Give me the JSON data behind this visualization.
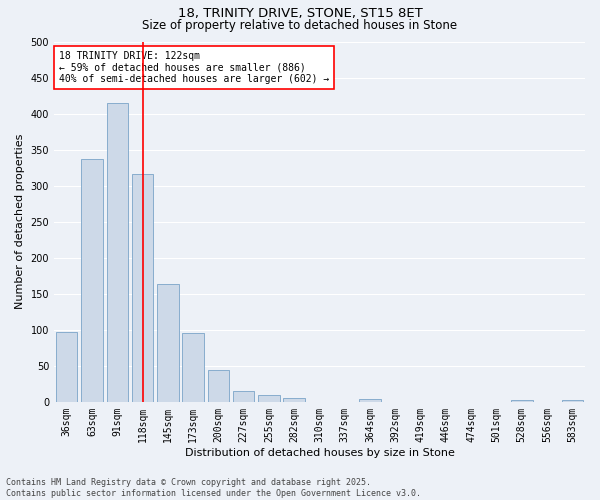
{
  "title1": "18, TRINITY DRIVE, STONE, ST15 8ET",
  "title2": "Size of property relative to detached houses in Stone",
  "xlabel": "Distribution of detached houses by size in Stone",
  "ylabel": "Number of detached properties",
  "categories": [
    "36sqm",
    "63sqm",
    "91sqm",
    "118sqm",
    "145sqm",
    "173sqm",
    "200sqm",
    "227sqm",
    "255sqm",
    "282sqm",
    "310sqm",
    "337sqm",
    "364sqm",
    "392sqm",
    "419sqm",
    "446sqm",
    "474sqm",
    "501sqm",
    "528sqm",
    "556sqm",
    "583sqm"
  ],
  "values": [
    97,
    337,
    415,
    316,
    163,
    96,
    44,
    15,
    10,
    5,
    0,
    0,
    4,
    0,
    0,
    0,
    0,
    0,
    3,
    0,
    3
  ],
  "bar_color": "#cdd9e8",
  "bar_edge_color": "#7aa4c8",
  "vline_x": 3,
  "vline_color": "red",
  "annotation_text": "18 TRINITY DRIVE: 122sqm\n← 59% of detached houses are smaller (886)\n40% of semi-detached houses are larger (602) →",
  "annotation_box_color": "white",
  "annotation_box_edge": "red",
  "ylim": [
    0,
    500
  ],
  "yticks": [
    0,
    50,
    100,
    150,
    200,
    250,
    300,
    350,
    400,
    450,
    500
  ],
  "bg_color": "#edf1f7",
  "footer_text": "Contains HM Land Registry data © Crown copyright and database right 2025.\nContains public sector information licensed under the Open Government Licence v3.0.",
  "grid_color": "white",
  "title1_fontsize": 9.5,
  "title2_fontsize": 8.5,
  "xlabel_fontsize": 8,
  "ylabel_fontsize": 8,
  "tick_fontsize": 7,
  "annotation_fontsize": 7,
  "footer_fontsize": 6
}
